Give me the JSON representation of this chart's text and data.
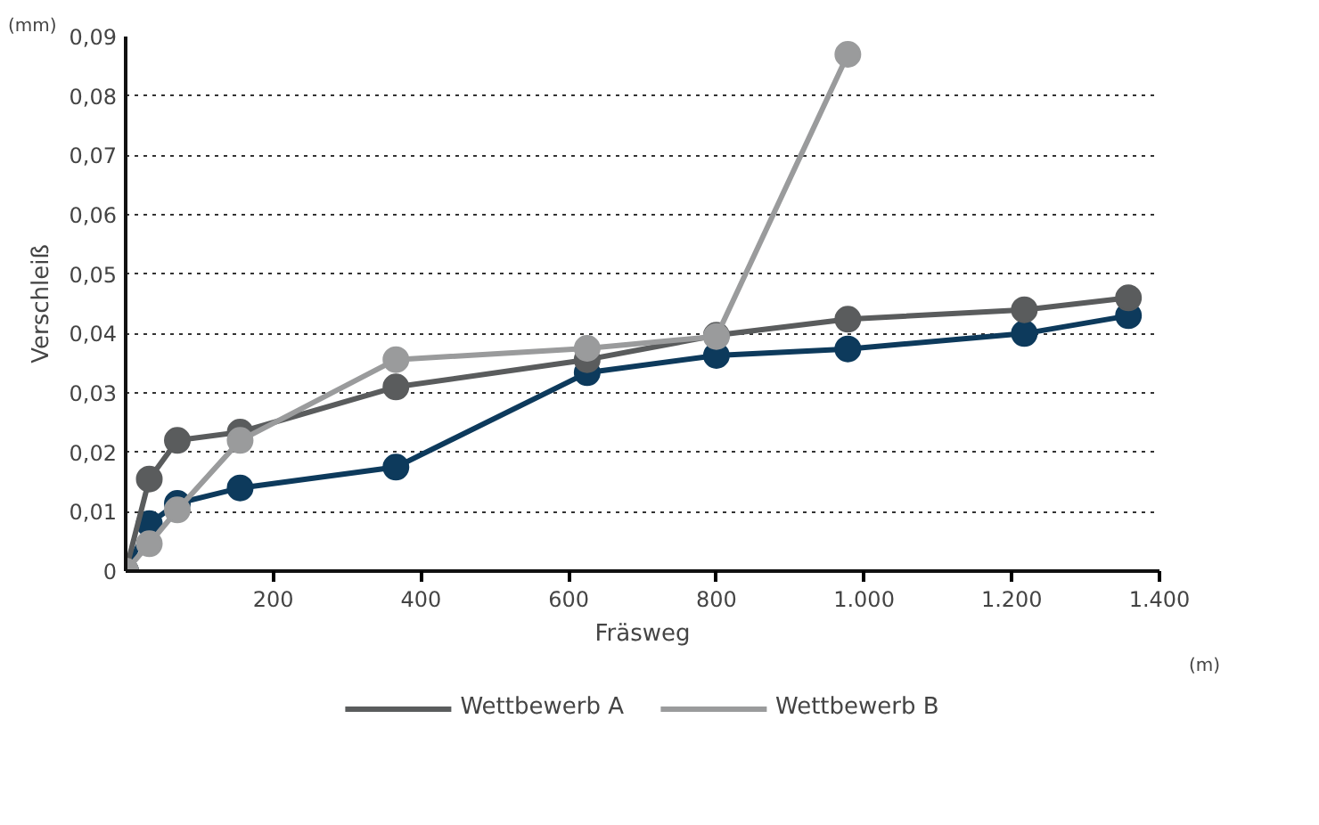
{
  "chart_data": {
    "type": "line",
    "xlabel": "Fräsweg",
    "ylabel": "Verschleiß",
    "annotations": [
      "(mm)",
      "(m)"
    ],
    "xlim": [
      0,
      1400
    ],
    "ylim": [
      0,
      0.09
    ],
    "xticks": [
      {
        "value": 200,
        "label": "200"
      },
      {
        "value": 400,
        "label": "400"
      },
      {
        "value": 600,
        "label": "600"
      },
      {
        "value": 800,
        "label": "800"
      },
      {
        "value": 1000,
        "label": "1.000"
      },
      {
        "value": 1200,
        "label": "1.200"
      },
      {
        "value": 1400,
        "label": "1.400"
      }
    ],
    "yticks": [
      0,
      {
        "value": 0.01,
        "label": "0,01"
      },
      {
        "value": 0.02,
        "label": "0,02"
      },
      {
        "value": 0.03,
        "label": "0,03"
      },
      {
        "value": 0.04,
        "label": "0,04"
      },
      {
        "value": 0.05,
        "label": "0,05"
      },
      {
        "value": 0.06,
        "label": "0,06"
      },
      {
        "value": 0.07,
        "label": "0,07"
      },
      {
        "value": 0.08,
        "label": "0,08"
      },
      {
        "value": 0.09,
        "label": "0,09"
      }
    ],
    "grid": "y",
    "legend": "bottom",
    "marker": "circle",
    "line_style": "solid",
    "series": [
      {
        "color": "#0d3a5c",
        "x": [
          0,
          32,
          70,
          155,
          366,
          625,
          800,
          978,
          1217,
          1358
        ],
        "values": [
          0,
          0.008,
          0.0114,
          0.014,
          0.0175,
          0.0334,
          0.0363,
          0.0374,
          0.04,
          0.043
        ]
      },
      {
        "name": "Wettbewerb A",
        "color": "#5a5c5d",
        "x": [
          0,
          32,
          70,
          155,
          366,
          625,
          800,
          978,
          1217,
          1358
        ],
        "values": [
          0,
          0.0155,
          0.022,
          0.0234,
          0.031,
          0.0356,
          0.0397,
          0.0424,
          0.044,
          0.046
        ]
      },
      {
        "name": "Wettbewerb B",
        "color": "#9a9b9c",
        "x": [
          0,
          32,
          70,
          155,
          366,
          625,
          800,
          978
        ],
        "values": [
          0,
          0.0046,
          0.0103,
          0.022,
          0.0356,
          0.0375,
          0.0395,
          0.087
        ]
      }
    ]
  }
}
